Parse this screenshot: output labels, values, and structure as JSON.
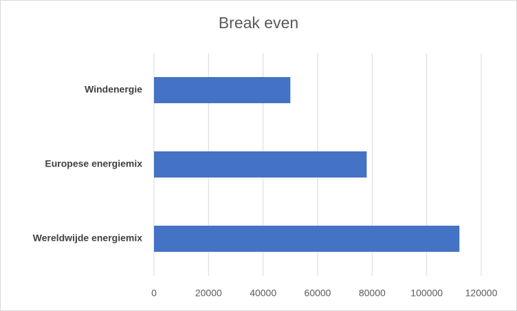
{
  "chart_data": {
    "type": "bar",
    "orientation": "horizontal",
    "title": "Break even",
    "categories": [
      "Windenergie",
      "Europese energiemix",
      "Wereldwijde energiemix"
    ],
    "values": [
      50000,
      78000,
      112000
    ],
    "color": "#4472c4",
    "xlim": [
      0,
      120000
    ],
    "xticks": [
      0,
      20000,
      40000,
      60000,
      80000,
      100000,
      120000
    ],
    "grid": true
  }
}
